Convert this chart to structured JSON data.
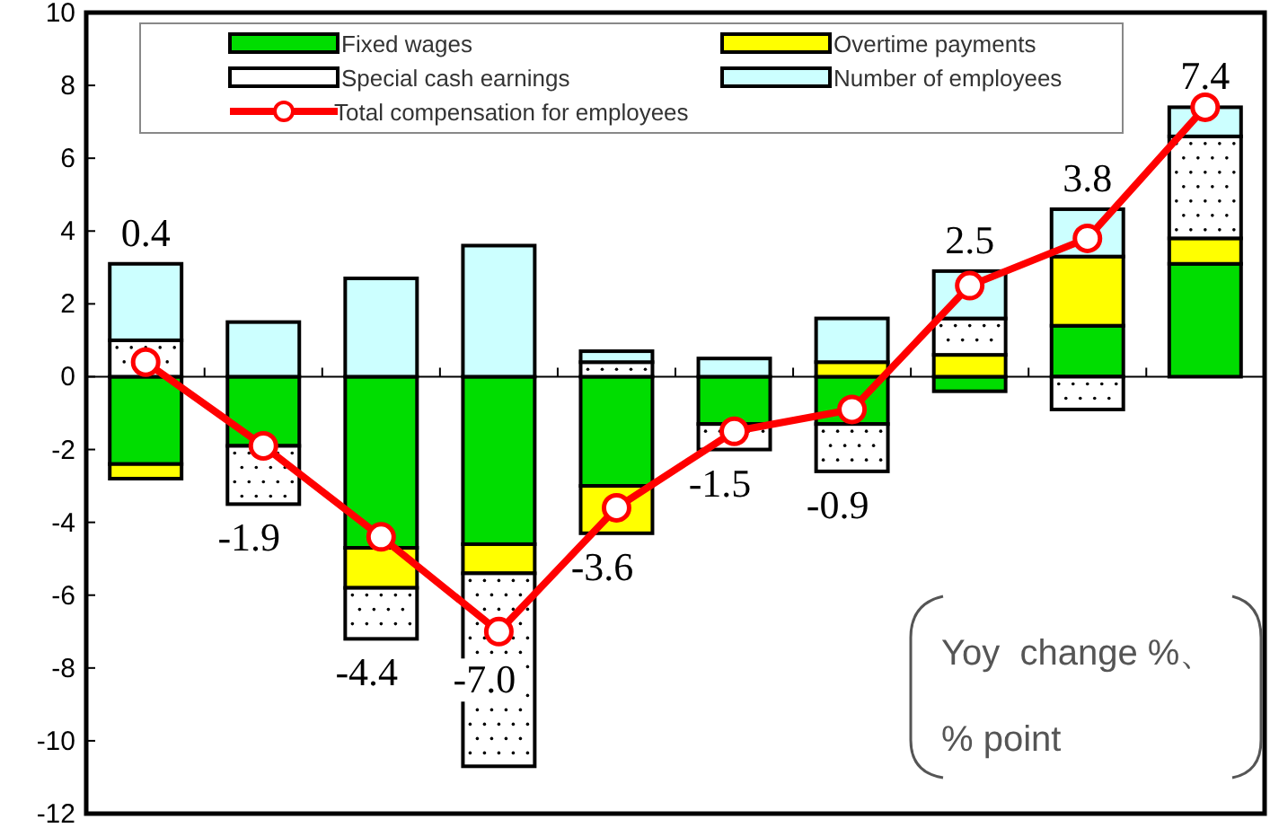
{
  "chart_data": {
    "type": "bar",
    "stacked": true,
    "categories": [
      null,
      null,
      null,
      null,
      null,
      null,
      null,
      null,
      null,
      null
    ],
    "series": [
      {
        "name": "Fixed wages",
        "color": "#00dd00",
        "values": [
          -2.4,
          -1.9,
          -4.7,
          -4.6,
          -3.0,
          -1.3,
          -1.3,
          -0.4,
          1.4,
          3.1
        ]
      },
      {
        "name": "Overtime payments",
        "color": "#ffff00",
        "values": [
          -0.4,
          0,
          -1.1,
          -0.8,
          -1.3,
          0,
          0.4,
          0.6,
          1.9,
          0.7
        ]
      },
      {
        "name": "Special cash earnings",
        "color": "#ffffff",
        "values": [
          1.0,
          -1.6,
          -1.4,
          -5.3,
          0.4,
          -0.7,
          -1.3,
          1.0,
          -0.9,
          2.8
        ]
      },
      {
        "name": "Number of employees",
        "color": "#ccffff",
        "values": [
          2.1,
          1.5,
          2.7,
          3.6,
          0.3,
          0.5,
          1.2,
          1.3,
          1.3,
          0.8
        ]
      },
      {
        "name": "Total compensation for employees",
        "type": "line",
        "color": "#ff0000",
        "marker": "circle",
        "values": [
          0.4,
          -1.9,
          -4.4,
          -7.0,
          -3.6,
          -1.5,
          -0.9,
          2.5,
          3.8,
          7.4
        ],
        "value_labels": [
          "0.4",
          "-1.9",
          "-4.4",
          "-7.0",
          "-3.6",
          "-1.5",
          "-0.9",
          "2.5",
          "3.8",
          "7.4"
        ]
      }
    ],
    "ref_lines": [
      {
        "axis": "y",
        "value": 0
      }
    ],
    "ylim": [
      -12,
      10
    ],
    "yticks": [
      -12,
      -10,
      -8,
      -6,
      -4,
      -2,
      0,
      2,
      4,
      6,
      8,
      10
    ],
    "legend": "top",
    "grid": false,
    "annotations": [
      "Yoy  change %、\n% point"
    ]
  }
}
